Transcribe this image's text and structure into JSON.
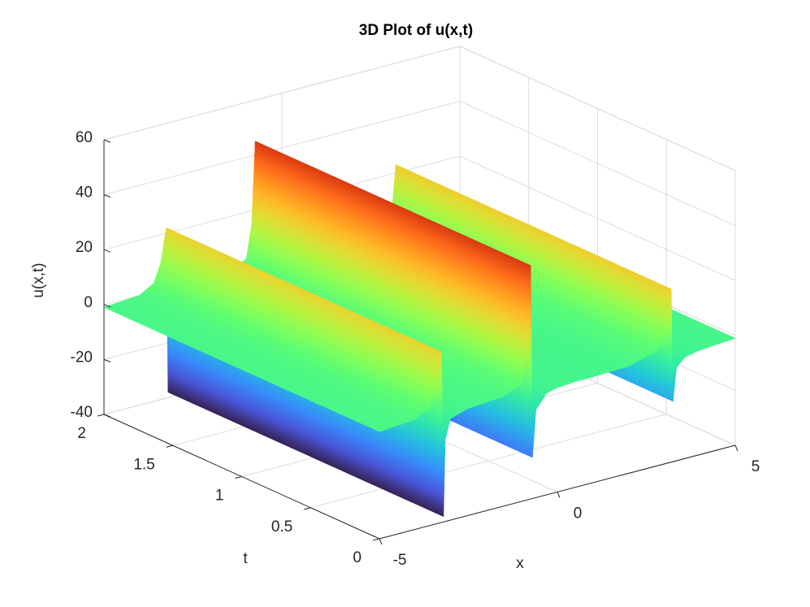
{
  "chart_data": {
    "type": "surface",
    "title": "3D Plot of u(x,t)",
    "xlabel": "x",
    "ylabel": "t",
    "zlabel": "u(x,t)",
    "x": [
      -5,
      -4.5,
      -4,
      -3.6,
      -3.4,
      -3.25,
      -3.2,
      -3.15,
      -3.0,
      -2.5,
      -2,
      -1.5,
      -1,
      -0.85,
      -0.75,
      -0.7,
      -0.6,
      -0.3,
      0,
      0.5,
      1,
      2,
      2.8,
      3.1,
      3.2,
      3.25,
      3.35,
      3.6,
      4,
      4.5,
      5
    ],
    "values": [
      -1,
      -0.5,
      0,
      3,
      10,
      22,
      -38,
      -10,
      -3,
      -1,
      -0.5,
      0,
      3,
      15,
      45,
      -25,
      -8,
      -3,
      -2,
      -1.5,
      -1.5,
      -1,
      2,
      8,
      23,
      -18,
      -6,
      -3,
      -2,
      -1.5,
      -1
    ],
    "xlim": [
      -5,
      5
    ],
    "ylim": [
      0,
      2
    ],
    "zlim": [
      -40,
      60
    ],
    "xticks": [
      -5,
      0,
      5
    ],
    "yticks": [
      0,
      0.5,
      1,
      1.5,
      2
    ],
    "zticks": [
      -40,
      -20,
      0,
      20,
      40,
      60
    ],
    "colormap": "turbo",
    "grid": true
  }
}
